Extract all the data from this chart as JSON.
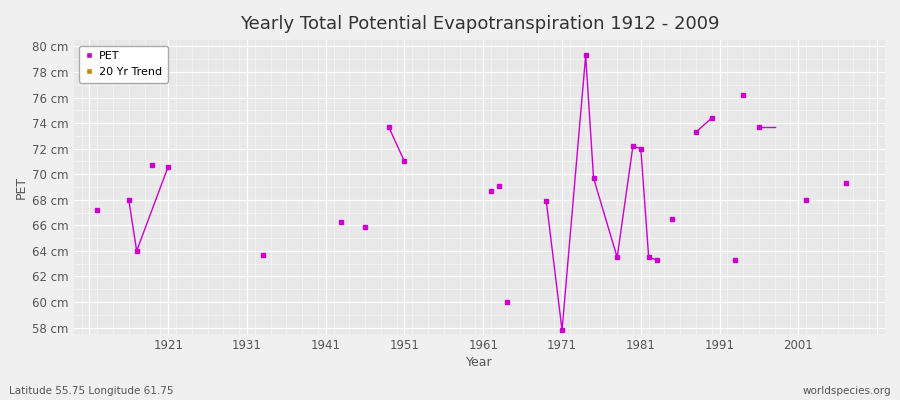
{
  "title": "Yearly Total Potential Evapotranspiration 1912 - 2009",
  "xlabel": "Year",
  "ylabel": "PET",
  "subtitle_left": "Latitude 55.75 Longitude 61.75",
  "subtitle_right": "worldspecies.org",
  "background_color": "#f0f0f0",
  "plot_bg_color": "#e8e8e8",
  "pet_color": "#cc00cc",
  "trend_color": "#cc8800",
  "ylim": [
    57.5,
    80.5
  ],
  "xlim": [
    1909,
    2012
  ],
  "yticks": [
    58,
    60,
    62,
    64,
    66,
    68,
    70,
    72,
    74,
    76,
    78,
    80
  ],
  "xticks": [
    1911,
    1921,
    1931,
    1941,
    1951,
    1961,
    1971,
    1981,
    1991,
    2001,
    2011
  ],
  "xtick_labels": [
    "",
    "1921",
    "1931",
    "1941",
    "1951",
    "1961",
    "1971",
    "1981",
    "1991",
    "2001",
    ""
  ],
  "pet_scatter": [
    [
      1912,
      67.2
    ],
    [
      1919,
      70.7
    ],
    [
      1933,
      63.7
    ],
    [
      1943,
      66.3
    ],
    [
      1946,
      65.9
    ],
    [
      1962,
      68.7
    ],
    [
      1963,
      69.1
    ],
    [
      1964,
      60.0
    ],
    [
      1978,
      63.5
    ],
    [
      1985,
      66.5
    ],
    [
      1993,
      63.3
    ],
    [
      1994,
      76.2
    ],
    [
      2002,
      68.0
    ],
    [
      2007,
      69.3
    ]
  ],
  "pet_line_segments": [
    {
      "x": [
        1916,
        1917,
        1921
      ],
      "y": [
        68.0,
        64.0,
        70.6
      ]
    },
    {
      "x": [
        1949,
        1951
      ],
      "y": [
        73.7,
        71.0
      ]
    },
    {
      "x": [
        1969,
        1971,
        1974,
        1975,
        1978,
        1980,
        1981,
        1982,
        1983
      ],
      "y": [
        67.9,
        57.8,
        79.3,
        69.7,
        63.5,
        72.2,
        72.0,
        63.5,
        63.3
      ]
    },
    {
      "x": [
        1988,
        1990
      ],
      "y": [
        73.3,
        74.4
      ]
    },
    {
      "x": [
        1996,
        1998
      ],
      "y": [
        73.7,
        73.7
      ]
    }
  ],
  "pet_line_dots": [
    [
      1916,
      68.0
    ],
    [
      1917,
      64.0
    ],
    [
      1921,
      70.6
    ],
    [
      1949,
      73.7
    ],
    [
      1951,
      71.0
    ],
    [
      1969,
      67.9
    ],
    [
      1971,
      57.8
    ],
    [
      1974,
      79.3
    ],
    [
      1975,
      69.7
    ],
    [
      1980,
      72.2
    ],
    [
      1981,
      72.0
    ],
    [
      1982,
      63.5
    ],
    [
      1983,
      63.3
    ],
    [
      1988,
      73.3
    ],
    [
      1990,
      74.4
    ],
    [
      1996,
      73.7
    ]
  ]
}
